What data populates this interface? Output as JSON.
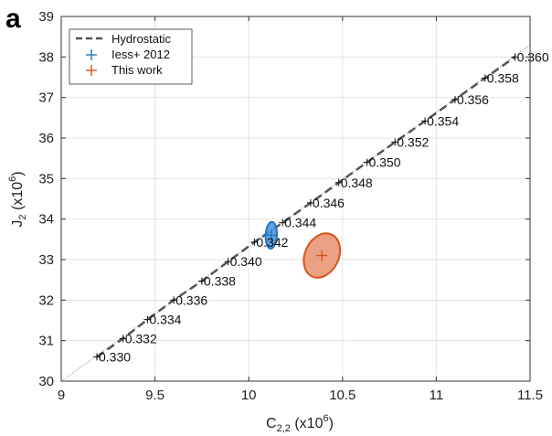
{
  "panel_label": "a",
  "chart_data": {
    "type": "scatter",
    "xlabel": "C",
    "xlabel_sub": "2,2",
    "xlabel_unit": " (x10",
    "xlabel_unit_sup": "6",
    "xlabel_unit_end": ")",
    "ylabel": "J",
    "ylabel_sub": "2",
    "ylabel_unit": " (x10",
    "ylabel_unit_sup": "6",
    "ylabel_unit_end": ")",
    "xlim": [
      9,
      11.5
    ],
    "ylim": [
      30,
      39
    ],
    "xticks": [
      9,
      9.5,
      10,
      10.5,
      11,
      11.5
    ],
    "xtick_labels": [
      "9",
      "9.5",
      "10",
      "10.5",
      "11",
      "11.5"
    ],
    "yticks": [
      30,
      31,
      32,
      33,
      34,
      35,
      36,
      37,
      38,
      39
    ],
    "ytick_labels": [
      "30",
      "31",
      "32",
      "33",
      "34",
      "35",
      "36",
      "37",
      "38",
      "39"
    ],
    "grid": true,
    "legend_position": "top-left",
    "reference_line": {
      "x": [
        9.0,
        11.5
      ],
      "y": [
        30.0,
        38.3
      ]
    },
    "series": [
      {
        "name": "Hydrostatic",
        "style": "dashed",
        "color": "#555555",
        "points": [
          {
            "x": 9.19,
            "y": 30.6,
            "label": "0.330"
          },
          {
            "x": 9.33,
            "y": 31.05,
            "label": "0.332"
          },
          {
            "x": 9.46,
            "y": 31.52,
            "label": "0.334"
          },
          {
            "x": 9.6,
            "y": 32.0,
            "label": "0.336"
          },
          {
            "x": 9.75,
            "y": 32.47,
            "label": "0.338"
          },
          {
            "x": 9.89,
            "y": 32.95,
            "label": "0.340"
          },
          {
            "x": 10.03,
            "y": 33.43,
            "label": "0.342"
          },
          {
            "x": 10.18,
            "y": 33.91,
            "label": "0.344"
          },
          {
            "x": 10.33,
            "y": 34.4,
            "label": "0.346"
          },
          {
            "x": 10.48,
            "y": 34.9,
            "label": "0.348"
          },
          {
            "x": 10.63,
            "y": 35.4,
            "label": "0.350"
          },
          {
            "x": 10.78,
            "y": 35.9,
            "label": "0.352"
          },
          {
            "x": 10.94,
            "y": 36.42,
            "label": "0.354"
          },
          {
            "x": 11.1,
            "y": 36.95,
            "label": "0.356"
          },
          {
            "x": 11.26,
            "y": 37.48,
            "label": "0.358"
          },
          {
            "x": 11.42,
            "y": 38.0,
            "label": "0.360"
          }
        ]
      },
      {
        "name": "Iess+ 2012",
        "color": "#1f77c4",
        "fill": "#4a90d9",
        "center": {
          "x": 10.12,
          "y": 33.6
        },
        "ellipse_half_extent": {
          "x": 0.03,
          "y": 0.33
        },
        "ellipse_tilt_deg": 3
      },
      {
        "name": "This work",
        "color": "#d95319",
        "fill": "#e8926e",
        "center": {
          "x": 10.39,
          "y": 33.1
        },
        "ellipse_half_extent": {
          "x": 0.09,
          "y": 0.57
        },
        "ellipse_tilt_deg": 25
      }
    ]
  }
}
